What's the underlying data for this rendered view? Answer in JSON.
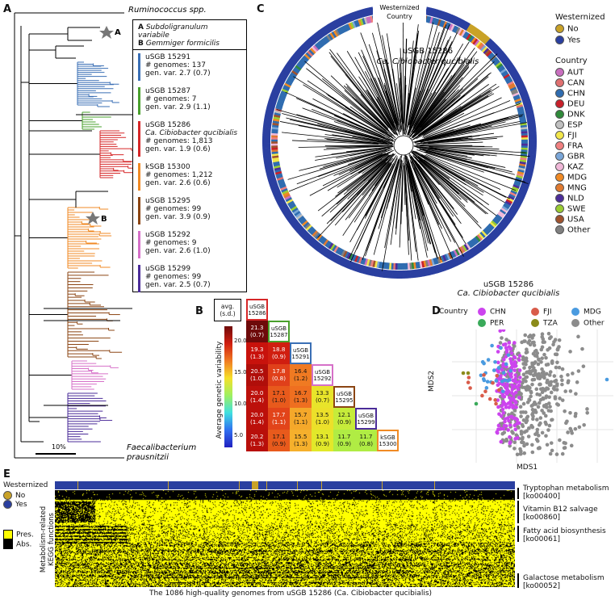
{
  "panel_labels": {
    "a": "A",
    "b": "B",
    "c": "C",
    "d": "D",
    "e": "E"
  },
  "tree_a": {
    "top_taxon": "Ruminococcus spp.",
    "bottom_taxon_line1": "Faecalibacterium",
    "bottom_taxon_line2": "prausnitzii",
    "scale_label": "10%",
    "star_a": "A",
    "star_b": "B",
    "legend_header": [
      {
        "letter": "A",
        "name": "Subdoligranulum variabile"
      },
      {
        "letter": "B",
        "name": "Gemmiger formicilis"
      }
    ],
    "legend_items": [
      {
        "line1": "uSGB 15291",
        "line2": "# genomes: 137",
        "line3": "gen. var. 2.7 (0.7)",
        "color": "#3a6fb5"
      },
      {
        "line1": "uSGB 15287",
        "line2": "# genomes: 7",
        "line3": "gen. var. 2.9 (1.1)",
        "color": "#4aa02c"
      },
      {
        "line1": "uSGB 15286",
        "line2": "Ca. Cibiobacter qucibialis",
        "line3": "# genomes: 1,813",
        "line4": "gen. var. 1.9 (0.6)",
        "color": "#d62728"
      },
      {
        "line1": "kSGB 15300",
        "line2": "# genomes: 1,212",
        "line3": "gen. var. 2.6 (0.6)",
        "color": "#f08a24"
      },
      {
        "line1": "uSGB 15295",
        "line2": "# genomes: 99",
        "line3": "gen. var. 3.9 (0.9)",
        "color": "#8b4513"
      },
      {
        "line1": "uSGB 15292",
        "line2": "# genomes: 9",
        "line3": "gen. var. 2.6 (1.0)",
        "color": "#d670c8"
      },
      {
        "line1": "uSGB 15299",
        "line2": "# genomes: 99",
        "line3": "gen. var. 2.5 (0.7)",
        "color": "#4b2c99"
      }
    ]
  },
  "heatmap_b": {
    "legend_title_line1": "avg.",
    "legend_title_line2": "(s.d.)",
    "colorbar_label": "Average genetic variability",
    "colorbar_ticks": [
      "20.0",
      "15.0",
      "10.0",
      "5.0"
    ],
    "diagonal": [
      {
        "line1": "uSGB",
        "line2": "15286",
        "color": "#d62728"
      },
      {
        "line1": "uSGB",
        "line2": "15287",
        "color": "#4aa02c"
      },
      {
        "line1": "uSGB",
        "line2": "15291",
        "color": "#3a6fb5"
      },
      {
        "line1": "uSGB",
        "line2": "15292",
        "color": "#d670c8"
      },
      {
        "line1": "uSGB",
        "line2": "15295",
        "color": "#8b4513"
      },
      {
        "line1": "uSGB",
        "line2": "15299",
        "color": "#4b2c99"
      },
      {
        "line1": "kSGB",
        "line2": "15300",
        "color": "#f08a24"
      }
    ],
    "cells": [
      {
        "row": 1,
        "col": 0,
        "value": "21.3",
        "sd": "(0.7)",
        "color": "#6e0a0a"
      },
      {
        "row": 2,
        "col": 0,
        "value": "19.3",
        "sd": "(1.3)",
        "color": "#c8120c"
      },
      {
        "row": 2,
        "col": 1,
        "value": "18.8",
        "sd": "(0.9)",
        "color": "#d01e10"
      },
      {
        "row": 3,
        "col": 0,
        "value": "20.5",
        "sd": "(1.0)",
        "color": "#b00e0a"
      },
      {
        "row": 3,
        "col": 1,
        "value": "17.8",
        "sd": "(0.8)",
        "color": "#e0401a"
      },
      {
        "row": 3,
        "col": 2,
        "value": "16.4",
        "sd": "(1.2)",
        "color": "#f07a22"
      },
      {
        "row": 4,
        "col": 0,
        "value": "20.0",
        "sd": "(1.4)",
        "color": "#bc100b"
      },
      {
        "row": 4,
        "col": 1,
        "value": "17.1",
        "sd": "(1.0)",
        "color": "#e85a1c"
      },
      {
        "row": 4,
        "col": 2,
        "value": "16.7",
        "sd": "(1.3)",
        "color": "#ef6f20"
      },
      {
        "row": 4,
        "col": 3,
        "value": "13.3",
        "sd": "(0.7)",
        "color": "#e8e42a"
      },
      {
        "row": 5,
        "col": 0,
        "value": "20.0",
        "sd": "(1.4)",
        "color": "#bc100b"
      },
      {
        "row": 5,
        "col": 1,
        "value": "17.7",
        "sd": "(1.1)",
        "color": "#e2441a"
      },
      {
        "row": 5,
        "col": 2,
        "value": "15.7",
        "sd": "(1.1)",
        "color": "#f5a82a"
      },
      {
        "row": 5,
        "col": 3,
        "value": "13.5",
        "sd": "(1.0)",
        "color": "#ece02a"
      },
      {
        "row": 5,
        "col": 4,
        "value": "12.1",
        "sd": "(0.9)",
        "color": "#c6ec3a"
      },
      {
        "row": 6,
        "col": 0,
        "value": "20.2",
        "sd": "(1.3)",
        "color": "#b80f0a"
      },
      {
        "row": 6,
        "col": 1,
        "value": "17.1",
        "sd": "(0.9)",
        "color": "#e85a1c"
      },
      {
        "row": 6,
        "col": 2,
        "value": "15.5",
        "sd": "(1.3)",
        "color": "#f6b02c"
      },
      {
        "row": 6,
        "col": 3,
        "value": "13.1",
        "sd": "(0.9)",
        "color": "#e2e82a"
      },
      {
        "row": 6,
        "col": 4,
        "value": "11.7",
        "sd": "(0.9)",
        "color": "#b0ec44"
      },
      {
        "row": 6,
        "col": 5,
        "value": "11.7",
        "sd": "(0.8)",
        "color": "#b0ec44"
      }
    ]
  },
  "tree_c": {
    "ring_label_line1": "Westernized",
    "ring_label_line2": "Country",
    "title_line1": "uSGB 15286",
    "title_line2": "Ca. Cibiobacter qucibialis",
    "westernized_title": "Westernized",
    "westernized": [
      {
        "label": "No",
        "color": "#c9a227"
      },
      {
        "label": "Yes",
        "color": "#2a3fa0"
      }
    ],
    "country_title": "Country",
    "countries": [
      {
        "label": "AUT",
        "color": "#c96fbf"
      },
      {
        "label": "CAN",
        "color": "#e07070"
      },
      {
        "label": "CHN",
        "color": "#2f6cb0"
      },
      {
        "label": "DEU",
        "color": "#c8202a"
      },
      {
        "label": "DNK",
        "color": "#2f8a3a"
      },
      {
        "label": "ESP",
        "color": "#c0c0c0"
      },
      {
        "label": "FJI",
        "color": "#f2e64a"
      },
      {
        "label": "FRA",
        "color": "#f08080"
      },
      {
        "label": "GBR",
        "color": "#7aa6d8"
      },
      {
        "label": "KAZ",
        "color": "#f0b8d8"
      },
      {
        "label": "MDG",
        "color": "#f08a24"
      },
      {
        "label": "MNG",
        "color": "#e07a30"
      },
      {
        "label": "NLD",
        "color": "#4b2c99"
      },
      {
        "label": "SWE",
        "color": "#9acd32"
      },
      {
        "label": "USA",
        "color": "#a0522d"
      },
      {
        "label": "Other",
        "color": "#808080"
      }
    ]
  },
  "mds_d": {
    "title_line1": "uSGB 15286",
    "title_line2": "Ca. Cibiobacter qucibialis",
    "legend_title": "Country",
    "groups": [
      {
        "label": "CHN",
        "color": "#cc44ee"
      },
      {
        "label": "FJI",
        "color": "#d95c4a"
      },
      {
        "label": "MDG",
        "color": "#4a9be0"
      },
      {
        "label": "PER",
        "color": "#3aaa5a"
      },
      {
        "label": "TZA",
        "color": "#8b8b1a"
      },
      {
        "label": "Other",
        "color": "#8c8c8c"
      }
    ],
    "xlabel": "MDS1",
    "ylabel": "MDS2"
  },
  "heatmap_e": {
    "westernized_title": "Westernized",
    "westernized": [
      {
        "label": "No",
        "color": "#c9a227"
      },
      {
        "label": "Yes",
        "color": "#2a3fa0"
      }
    ],
    "presence": [
      {
        "label": "Pres.",
        "color": "#ffff00"
      },
      {
        "label": "Abs.",
        "color": "#000000"
      }
    ],
    "ylabel_line1": "Metabolism-related",
    "ylabel_line2": "KEGG functions",
    "pathways": [
      {
        "line1": "Tryptophan metabolism",
        "line2": "[ko00400]"
      },
      {
        "line1": "Vitamin B12 salvage",
        "line2": "[ko00860]"
      },
      {
        "line1": "Fatty acid biosynthesis",
        "line2": "[ko00061]"
      },
      {
        "line1": "Galactose metabolism",
        "line2": "[ko00052]"
      }
    ],
    "xlabel": "The 1086 high-quality genomes from uSGB 15286 (Ca. Cibiobacter qucibialis)"
  }
}
